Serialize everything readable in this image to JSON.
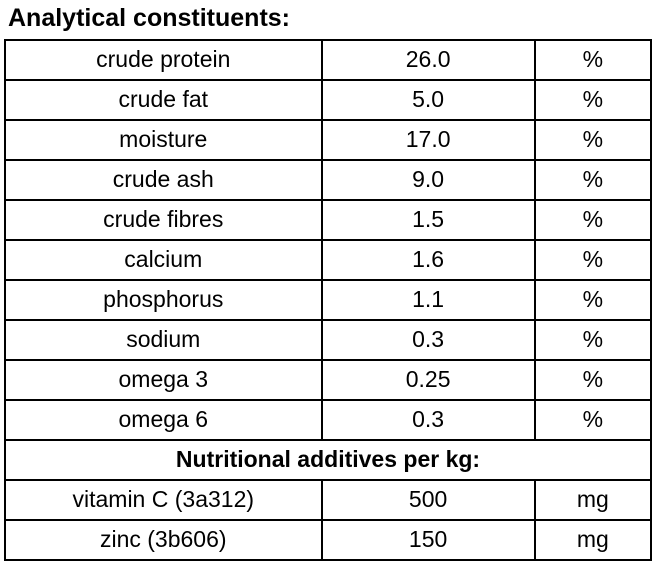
{
  "page": {
    "title": "Analytical constituents:"
  },
  "colors": {
    "border": "#000000",
    "background": "#ffffff",
    "text": "#000000"
  },
  "table": {
    "constituents": [
      {
        "name": "crude protein",
        "value": "26.0",
        "unit": "%"
      },
      {
        "name": "crude fat",
        "value": "5.0",
        "unit": "%"
      },
      {
        "name": "moisture",
        "value": "17.0",
        "unit": "%"
      },
      {
        "name": "crude ash",
        "value": "9.0",
        "unit": "%"
      },
      {
        "name": "crude fibres",
        "value": "1.5",
        "unit": "%"
      },
      {
        "name": "calcium",
        "value": "1.6",
        "unit": "%"
      },
      {
        "name": "phosphorus",
        "value": "1.1",
        "unit": "%"
      },
      {
        "name": "sodium",
        "value": "0.3",
        "unit": "%"
      },
      {
        "name": "omega 3",
        "value": "0.25",
        "unit": "%"
      },
      {
        "name": "omega 6",
        "value": "0.3",
        "unit": "%"
      }
    ],
    "additives_header": "Nutritional additives per kg:",
    "additives": [
      {
        "name": "vitamin C (3a312)",
        "value": "500",
        "unit": "mg"
      },
      {
        "name": "zinc (3b606)",
        "value": "150",
        "unit": "mg"
      }
    ]
  }
}
